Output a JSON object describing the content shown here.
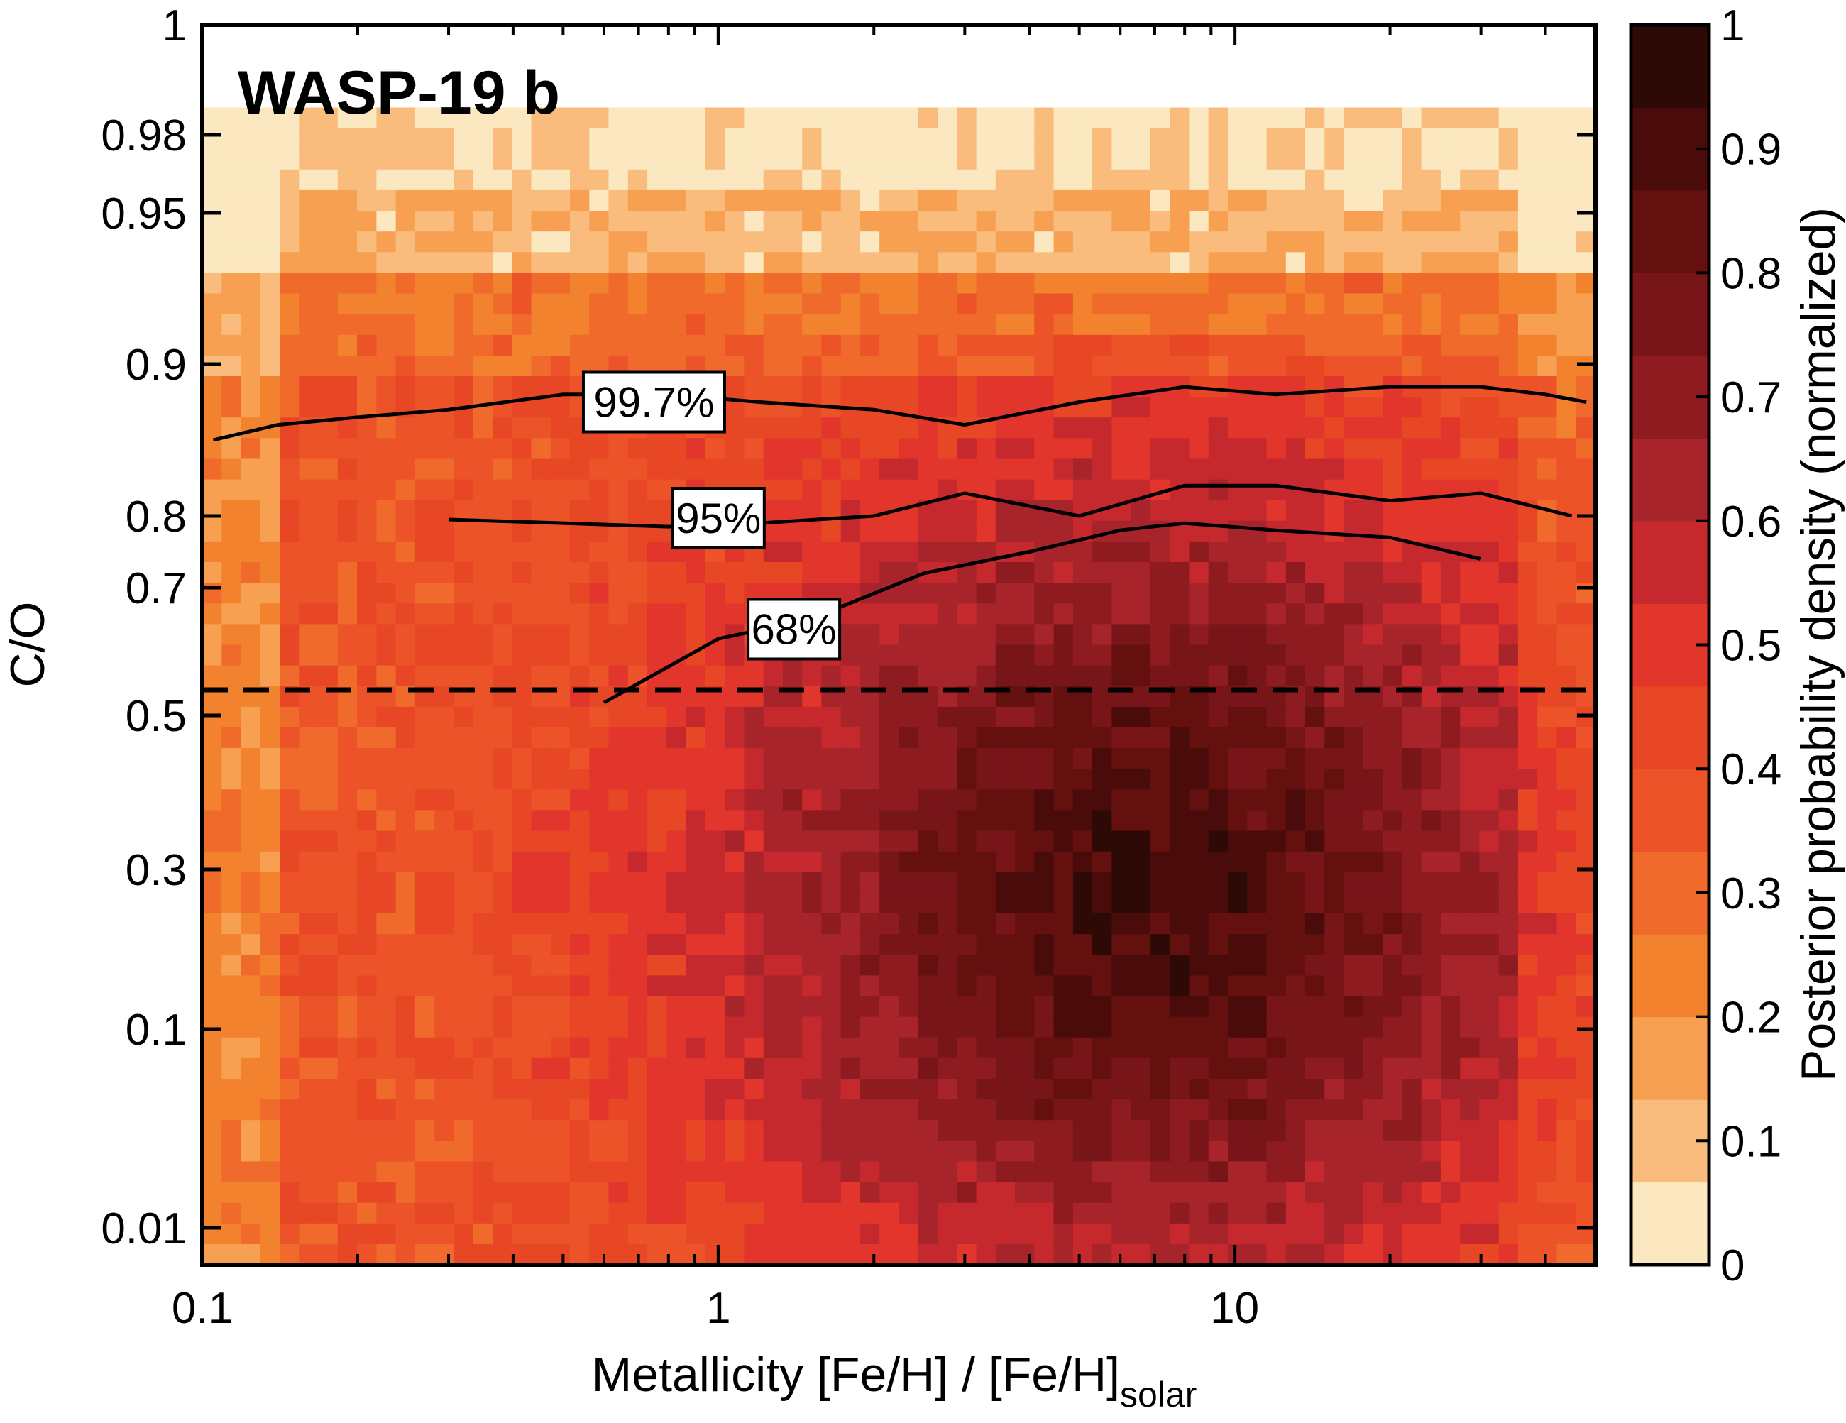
{
  "chart_data": {
    "type": "heatmap",
    "title": "WASP-19 b",
    "xlabel": "Metallicity [Fe/H] / [Fe/H]",
    "xlabel_subscript": "solar",
    "ylabel": "C/O",
    "colorbar_label": "Posterior probability density (normalized)",
    "x_scale": "log",
    "xlim": [
      0.1,
      50
    ],
    "x_ticks": [
      {
        "value": 0.1,
        "label": "0.1"
      },
      {
        "value": 1,
        "label": "1"
      },
      {
        "value": 10,
        "label": "10"
      }
    ],
    "ylim": [
      0.0,
      1.0
    ],
    "y_ticks": [
      {
        "value": 0.01,
        "label": "0.01"
      },
      {
        "value": 0.1,
        "label": "0.1"
      },
      {
        "value": 0.3,
        "label": "0.3"
      },
      {
        "value": 0.5,
        "label": "0.5"
      },
      {
        "value": 0.7,
        "label": "0.7"
      },
      {
        "value": 0.8,
        "label": "0.8"
      },
      {
        "value": 0.9,
        "label": "0.9"
      },
      {
        "value": 0.95,
        "label": "0.95"
      },
      {
        "value": 0.98,
        "label": "0.98"
      },
      {
        "value": 1,
        "label": "1"
      }
    ],
    "colorbar_ticks": [
      {
        "value": 0,
        "label": "0"
      },
      {
        "value": 0.1,
        "label": "0.1"
      },
      {
        "value": 0.2,
        "label": "0.2"
      },
      {
        "value": 0.3,
        "label": "0.3"
      },
      {
        "value": 0.4,
        "label": "0.4"
      },
      {
        "value": 0.5,
        "label": "0.5"
      },
      {
        "value": 0.6,
        "label": "0.6"
      },
      {
        "value": 0.7,
        "label": "0.7"
      },
      {
        "value": 0.8,
        "label": "0.8"
      },
      {
        "value": 0.9,
        "label": "0.9"
      },
      {
        "value": 1,
        "label": "1"
      }
    ],
    "colorbar_levels": [
      "#fbe8c0",
      "#f9bc7c",
      "#f7a052",
      "#f3822e",
      "#ef6a2b",
      "#ec5328",
      "#e84726",
      "#e2352b",
      "#c5282d",
      "#a7242a",
      "#8d1b1f",
      "#781519",
      "#64100f",
      "#4a0c0a",
      "#2d0a06"
    ],
    "reference_line": {
      "value": 0.54,
      "style": "dashed",
      "description": "solar C/O"
    },
    "contour_labels": [
      {
        "label": "99.7%",
        "x": 0.75,
        "y": 0.875
      },
      {
        "label": "95%",
        "x": 1.0,
        "y": 0.797
      },
      {
        "label": "68%",
        "x": 1.4,
        "y": 0.635
      }
    ],
    "contour_boundaries": {
      "99.7%": {
        "x": [
          0.105,
          0.14,
          0.2,
          0.3,
          0.5,
          0.8,
          1.2,
          2,
          3,
          5,
          8,
          12,
          20,
          30,
          40,
          48
        ],
        "y_top": [
          0.85,
          0.86,
          0.865,
          0.87,
          0.88,
          0.88,
          0.875,
          0.87,
          0.86,
          0.875,
          0.885,
          0.88,
          0.885,
          0.885,
          0.88,
          0.875
        ]
      },
      "95%": {
        "x": [
          0.3,
          0.5,
          0.8,
          1.2,
          2,
          3,
          5,
          8,
          12,
          20,
          30,
          45
        ],
        "y_top": [
          0.795,
          0.79,
          0.785,
          0.79,
          0.8,
          0.815,
          0.8,
          0.82,
          0.82,
          0.81,
          0.815,
          0.8
        ]
      },
      "68%": {
        "x": [
          0.6,
          1.0,
          1.5,
          2.5,
          4,
          6,
          8,
          12,
          20,
          30
        ],
        "y_top": [
          0.52,
          0.62,
          0.65,
          0.72,
          0.75,
          0.78,
          0.79,
          0.78,
          0.77,
          0.74
        ]
      }
    }
  }
}
